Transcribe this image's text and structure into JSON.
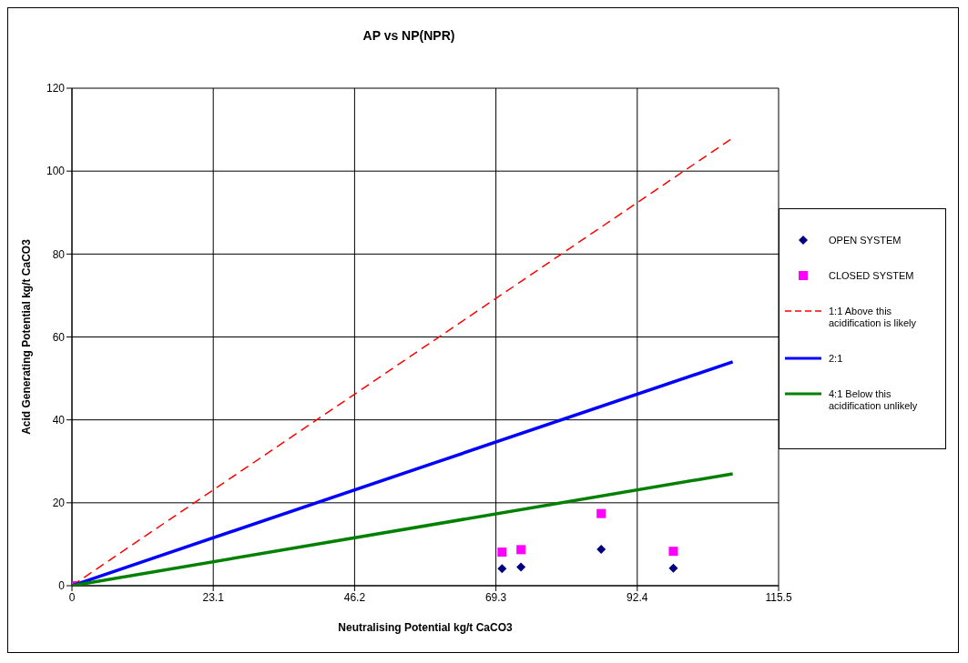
{
  "chart_data": {
    "type": "scatter",
    "title": "AP vs NP(NPR)",
    "xlabel": "Neutralising Potential kg/t CaCO3",
    "ylabel": "Acid Generating Potential kg/t CaCO3",
    "xlim": [
      0,
      115.5
    ],
    "xticks": [
      0,
      23.1,
      46.2,
      69.3,
      92.4,
      115.5
    ],
    "ylim": [
      0,
      120
    ],
    "yticks": [
      0,
      20,
      40,
      60,
      80,
      100,
      120
    ],
    "grid": true,
    "legend": "right",
    "series": [
      {
        "name": "OPEN SYSTEM",
        "type": "scatter",
        "marker": "diamond",
        "color": "#000080",
        "x": [
          70.3,
          73.4,
          86.5,
          98.3
        ],
        "values": [
          4.1,
          4.5,
          8.8,
          4.2
        ]
      },
      {
        "name": "CLOSED SYSTEM",
        "type": "scatter",
        "marker": "square",
        "color": "#ff00ff",
        "x": [
          0,
          70.3,
          73.4,
          86.5,
          98.3
        ],
        "values": [
          0,
          8.1,
          8.7,
          17.4,
          8.3
        ]
      },
      {
        "name": "1:1 Above this acidification is likely",
        "type": "line",
        "line_style": "dashed",
        "color": "#ff0000",
        "x": [
          0,
          108
        ],
        "values": [
          0,
          108
        ]
      },
      {
        "name": "2:1",
        "type": "line",
        "line_style": "solid",
        "color": "#0000ff",
        "x": [
          0,
          108
        ],
        "values": [
          0,
          54
        ]
      },
      {
        "name": "4:1 Below this acidification unlikely",
        "type": "line",
        "line_style": "solid",
        "color": "#008000",
        "x": [
          0,
          108
        ],
        "values": [
          0,
          27
        ]
      }
    ]
  }
}
